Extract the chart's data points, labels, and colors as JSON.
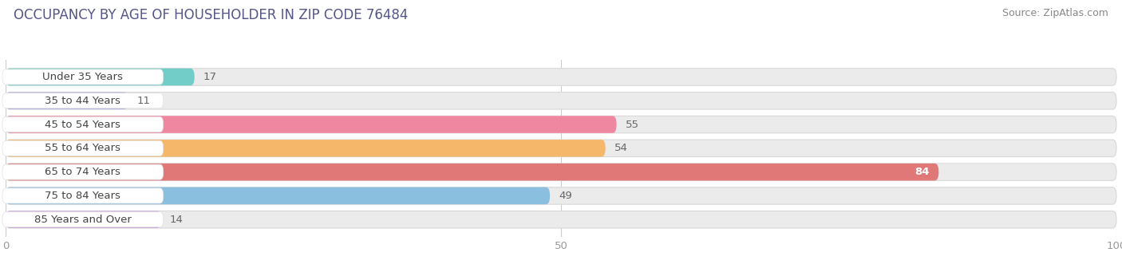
{
  "title": "OCCUPANCY BY AGE OF HOUSEHOLDER IN ZIP CODE 76484",
  "source": "Source: ZipAtlas.com",
  "categories": [
    "Under 35 Years",
    "35 to 44 Years",
    "45 to 54 Years",
    "55 to 64 Years",
    "65 to 74 Years",
    "75 to 84 Years",
    "85 Years and Over"
  ],
  "values": [
    17,
    11,
    55,
    54,
    84,
    49,
    14
  ],
  "bar_colors": [
    "#72cdc8",
    "#aaaade",
    "#f087a0",
    "#f5b86a",
    "#e07878",
    "#8bbfe0",
    "#c8a0d8"
  ],
  "xlim": [
    0,
    100
  ],
  "bar_height": 0.72,
  "background_color": "#ffffff",
  "bar_bg_color": "#ebebeb",
  "title_fontsize": 12,
  "label_fontsize": 9.5,
  "value_fontsize": 9.5,
  "source_fontsize": 9
}
